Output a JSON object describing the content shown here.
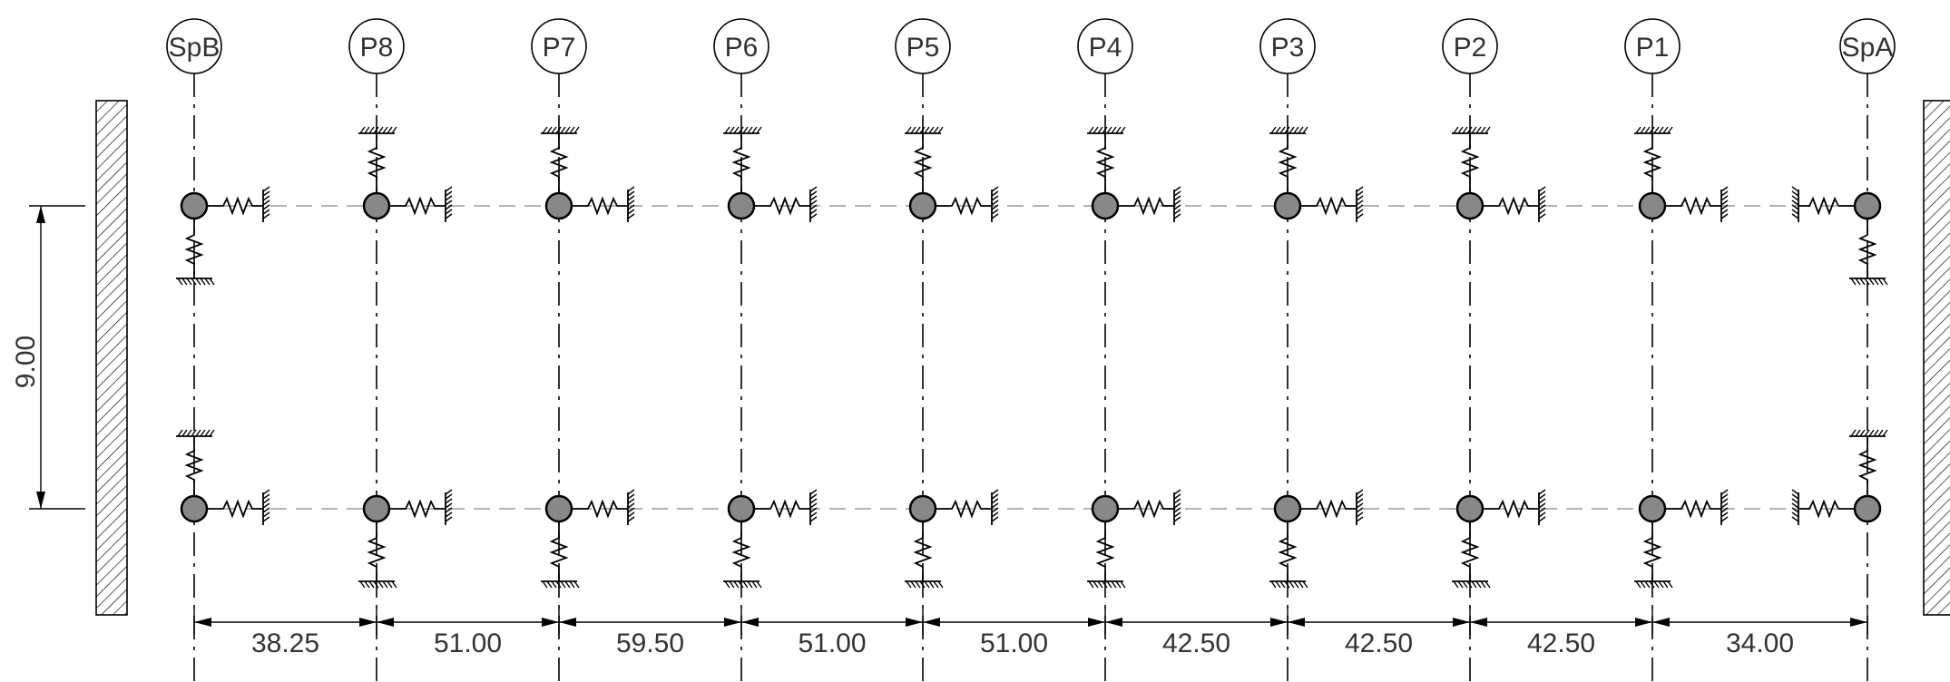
{
  "axes": [
    "SpB",
    "P8",
    "P7",
    "P6",
    "P5",
    "P4",
    "P3",
    "P2",
    "P1",
    "SpA"
  ],
  "spans": [
    "38.25",
    "51.00",
    "59.50",
    "51.00",
    "51.00",
    "42.50",
    "42.50",
    "42.50",
    "34.00"
  ],
  "vertical_dimension": "9.00",
  "colors": {
    "line": "#000000",
    "node_fill": "#888888",
    "beam": "#9a9a9a",
    "text": "#333333"
  },
  "icons": [
    "spring-support-icon",
    "fixed-support-hatch-icon",
    "abutment-wall-icon"
  ]
}
